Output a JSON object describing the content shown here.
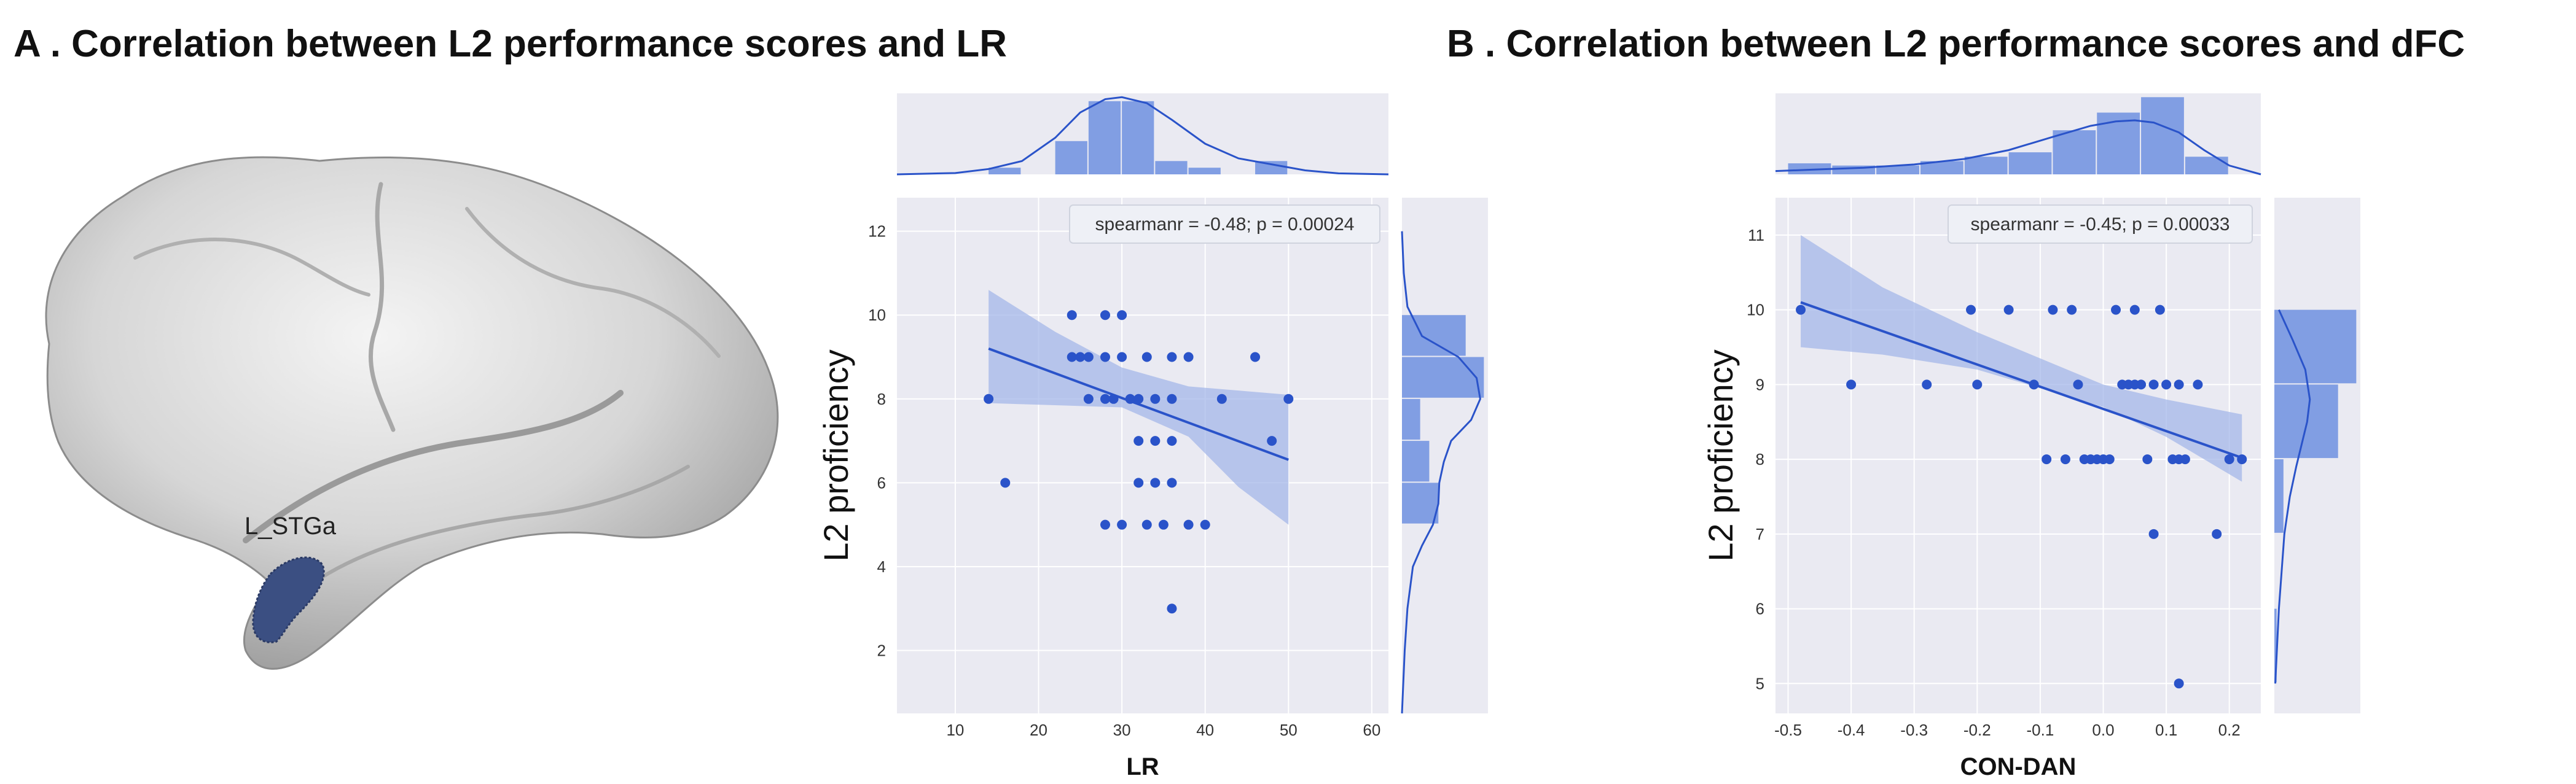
{
  "panels": [
    {
      "title": "A . Correlation between L2 performance scores and LR",
      "region_label": "L_STGa"
    },
    {
      "title": "B . Correlation between L2 performance scores and dFC"
    }
  ],
  "colors": {
    "point": "#2a53c9",
    "line": "#2a53c9",
    "band": "#9fb3e8",
    "hist": "#6f91e0",
    "panel_bg": "#eaeaf2",
    "grid": "#ffffff",
    "brain_fill": "#c9c9c9",
    "region": "#3b4f82"
  },
  "chart_data": [
    {
      "type": "scatter",
      "title": "",
      "xlabel": "LR",
      "ylabel": "L2 proficiency",
      "xlim": [
        3,
        62
      ],
      "ylim": [
        0.5,
        12.8
      ],
      "xticks": [
        "10",
        "20",
        "30",
        "40",
        "50",
        "60"
      ],
      "xtick_values": [
        10,
        20,
        30,
        40,
        50,
        60
      ],
      "yticks": [
        "2",
        "4",
        "6",
        "8",
        "10",
        "12"
      ],
      "ytick_values": [
        2,
        4,
        6,
        8,
        10,
        12
      ],
      "legend": "spearmanr = -0.48; p = 0.00024",
      "legend_position": "top-right",
      "points": [
        {
          "x": 14,
          "y": 8
        },
        {
          "x": 16,
          "y": 6
        },
        {
          "x": 24,
          "y": 10
        },
        {
          "x": 24,
          "y": 9
        },
        {
          "x": 25,
          "y": 9
        },
        {
          "x": 26,
          "y": 8
        },
        {
          "x": 26,
          "y": 9
        },
        {
          "x": 28,
          "y": 10
        },
        {
          "x": 28,
          "y": 9
        },
        {
          "x": 28,
          "y": 8
        },
        {
          "x": 28,
          "y": 5
        },
        {
          "x": 29,
          "y": 8
        },
        {
          "x": 30,
          "y": 10
        },
        {
          "x": 30,
          "y": 9
        },
        {
          "x": 30,
          "y": 5
        },
        {
          "x": 31,
          "y": 8
        },
        {
          "x": 32,
          "y": 8
        },
        {
          "x": 32,
          "y": 7
        },
        {
          "x": 32,
          "y": 6
        },
        {
          "x": 33,
          "y": 9
        },
        {
          "x": 33,
          "y": 5
        },
        {
          "x": 34,
          "y": 8
        },
        {
          "x": 34,
          "y": 7
        },
        {
          "x": 34,
          "y": 6
        },
        {
          "x": 35,
          "y": 5
        },
        {
          "x": 36,
          "y": 9
        },
        {
          "x": 36,
          "y": 8
        },
        {
          "x": 36,
          "y": 7
        },
        {
          "x": 36,
          "y": 6
        },
        {
          "x": 36,
          "y": 3
        },
        {
          "x": 38,
          "y": 9
        },
        {
          "x": 38,
          "y": 5
        },
        {
          "x": 40,
          "y": 5
        },
        {
          "x": 42,
          "y": 8
        },
        {
          "x": 46,
          "y": 9
        },
        {
          "x": 48,
          "y": 7
        },
        {
          "x": 50,
          "y": 8
        }
      ],
      "fit": {
        "x": [
          14,
          50
        ],
        "y": [
          9.2,
          6.55
        ]
      },
      "band_upper": [
        {
          "x": 14,
          "y": 10.6
        },
        {
          "x": 22,
          "y": 9.6
        },
        {
          "x": 30,
          "y": 8.75
        },
        {
          "x": 38,
          "y": 8.3
        },
        {
          "x": 44,
          "y": 8.2
        },
        {
          "x": 50,
          "y": 8.1
        }
      ],
      "band_lower": [
        {
          "x": 14,
          "y": 7.9
        },
        {
          "x": 22,
          "y": 7.85
        },
        {
          "x": 30,
          "y": 7.8
        },
        {
          "x": 38,
          "y": 7.1
        },
        {
          "x": 44,
          "y": 5.9
        },
        {
          "x": 50,
          "y": 5.0
        }
      ],
      "top_hist": {
        "bins": [
          [
            14,
            18
          ],
          [
            18,
            22
          ],
          [
            22,
            26
          ],
          [
            26,
            30
          ],
          [
            30,
            34
          ],
          [
            34,
            38
          ],
          [
            38,
            42
          ],
          [
            42,
            46
          ],
          [
            46,
            50
          ]
        ],
        "counts": [
          1,
          0,
          5,
          11,
          11,
          2,
          1,
          0,
          2
        ],
        "kde_x": [
          3,
          10,
          14,
          18,
          22,
          25,
          28,
          30,
          33,
          36,
          40,
          44,
          48,
          52,
          56,
          62
        ],
        "kde_y": [
          0,
          0.2,
          0.8,
          2.0,
          5.5,
          9.3,
          11.3,
          11.6,
          10.7,
          8.2,
          4.6,
          2.4,
          1.5,
          0.6,
          0.15,
          0
        ]
      },
      "right_hist": {
        "bins": [
          [
            9,
            10
          ],
          [
            8,
            9
          ],
          [
            7,
            8
          ],
          [
            6,
            7
          ],
          [
            5,
            6
          ]
        ],
        "counts": [
          7,
          9,
          2,
          3,
          4
        ],
        "kde_y": [
          12,
          11,
          10.2,
          9.5,
          9,
          8.5,
          8,
          7.5,
          7,
          6.5,
          6,
          5.5,
          5,
          4.5,
          4,
          3,
          2,
          1,
          0.5
        ],
        "kde_x": [
          0,
          0.2,
          0.6,
          2.2,
          6.2,
          8.2,
          8.6,
          7.6,
          5.4,
          4.6,
          4.1,
          4.0,
          3.4,
          2.2,
          1.2,
          0.6,
          0.3,
          0.1,
          0
        ]
      }
    },
    {
      "type": "scatter",
      "title": "",
      "xlabel": "CON-DAN",
      "ylabel": "L2 proficiency",
      "xlim": [
        -0.52,
        0.25
      ],
      "ylim": [
        4.6,
        11.5
      ],
      "xticks": [
        "-0.5",
        "-0.4",
        "-0.3",
        "-0.2",
        "-0.1",
        "0.0",
        "0.1",
        "0.2"
      ],
      "xtick_values": [
        -0.5,
        -0.4,
        -0.3,
        -0.2,
        -0.1,
        0.0,
        0.1,
        0.2
      ],
      "yticks": [
        "5",
        "6",
        "7",
        "8",
        "9",
        "10",
        "11"
      ],
      "ytick_values": [
        5,
        6,
        7,
        8,
        9,
        10,
        11
      ],
      "legend": "spearmanr = -0.45; p = 0.00033",
      "legend_position": "top-right",
      "points": [
        {
          "x": -0.48,
          "y": 10
        },
        {
          "x": -0.4,
          "y": 9
        },
        {
          "x": -0.28,
          "y": 9
        },
        {
          "x": -0.21,
          "y": 10
        },
        {
          "x": -0.2,
          "y": 9
        },
        {
          "x": -0.15,
          "y": 10
        },
        {
          "x": -0.11,
          "y": 9
        },
        {
          "x": -0.09,
          "y": 8
        },
        {
          "x": -0.08,
          "y": 10
        },
        {
          "x": -0.06,
          "y": 8
        },
        {
          "x": -0.05,
          "y": 10
        },
        {
          "x": -0.04,
          "y": 9
        },
        {
          "x": -0.03,
          "y": 8
        },
        {
          "x": -0.02,
          "y": 8
        },
        {
          "x": -0.01,
          "y": 8
        },
        {
          "x": 0.0,
          "y": 8
        },
        {
          "x": 0.01,
          "y": 8
        },
        {
          "x": 0.02,
          "y": 10
        },
        {
          "x": 0.03,
          "y": 9
        },
        {
          "x": 0.04,
          "y": 9
        },
        {
          "x": 0.05,
          "y": 9
        },
        {
          "x": 0.05,
          "y": 10
        },
        {
          "x": 0.06,
          "y": 9
        },
        {
          "x": 0.07,
          "y": 8
        },
        {
          "x": 0.08,
          "y": 9
        },
        {
          "x": 0.08,
          "y": 7
        },
        {
          "x": 0.09,
          "y": 10
        },
        {
          "x": 0.1,
          "y": 9
        },
        {
          "x": 0.11,
          "y": 8
        },
        {
          "x": 0.12,
          "y": 9
        },
        {
          "x": 0.12,
          "y": 8
        },
        {
          "x": 0.12,
          "y": 5
        },
        {
          "x": 0.13,
          "y": 8
        },
        {
          "x": 0.15,
          "y": 9
        },
        {
          "x": 0.18,
          "y": 7
        },
        {
          "x": 0.2,
          "y": 8
        },
        {
          "x": 0.22,
          "y": 8
        }
      ],
      "fit": {
        "x": [
          -0.48,
          0.22
        ],
        "y": [
          10.1,
          8.02
        ]
      },
      "band_upper": [
        {
          "x": -0.48,
          "y": 11.0
        },
        {
          "x": -0.35,
          "y": 10.3
        },
        {
          "x": -0.2,
          "y": 9.7
        },
        {
          "x": -0.1,
          "y": 9.35
        },
        {
          "x": 0.0,
          "y": 9.0
        },
        {
          "x": 0.1,
          "y": 8.8
        },
        {
          "x": 0.22,
          "y": 8.6
        }
      ],
      "band_lower": [
        {
          "x": -0.48,
          "y": 9.5
        },
        {
          "x": -0.35,
          "y": 9.4
        },
        {
          "x": -0.2,
          "y": 9.2
        },
        {
          "x": -0.1,
          "y": 8.95
        },
        {
          "x": 0.0,
          "y": 8.7
        },
        {
          "x": 0.1,
          "y": 8.3
        },
        {
          "x": 0.22,
          "y": 7.7
        }
      ],
      "top_hist": {
        "bins": [
          [
            -0.5,
            -0.43
          ],
          [
            -0.43,
            -0.36
          ],
          [
            -0.36,
            -0.29
          ],
          [
            -0.29,
            -0.22
          ],
          [
            -0.22,
            -0.15
          ],
          [
            -0.15,
            -0.08
          ],
          [
            -0.08,
            -0.01
          ],
          [
            -0.01,
            0.06
          ],
          [
            0.06,
            0.13
          ],
          [
            0.13,
            0.2
          ]
        ],
        "counts": [
          1,
          0.8,
          0.8,
          1.2,
          1.6,
          2.0,
          4.0,
          5.6,
          7.0,
          1.6
        ],
        "kde_x": [
          -0.52,
          -0.45,
          -0.38,
          -0.3,
          -0.22,
          -0.15,
          -0.08,
          -0.02,
          0.02,
          0.05,
          0.08,
          0.12,
          0.16,
          0.2,
          0.25
        ],
        "kde_y": [
          0.3,
          0.45,
          0.6,
          0.9,
          1.4,
          2.2,
          3.4,
          4.4,
          4.8,
          4.9,
          4.7,
          3.8,
          2.2,
          0.8,
          0
        ]
      },
      "right_hist": {
        "bins": [
          [
            9,
            10
          ],
          [
            8,
            9
          ],
          [
            7,
            8
          ],
          [
            5,
            6
          ]
        ],
        "counts": [
          9,
          7,
          1,
          0.25
        ],
        "kde_y": [
          10,
          9.6,
          9.2,
          8.8,
          8.5,
          8.2,
          7.9,
          7.5,
          7,
          6.5,
          6,
          5.5,
          5
        ],
        "kde_x": [
          0.5,
          2,
          3.4,
          3.9,
          3.6,
          3.0,
          2.4,
          1.7,
          1.1,
          0.8,
          0.5,
          0.3,
          0.1
        ]
      }
    }
  ]
}
